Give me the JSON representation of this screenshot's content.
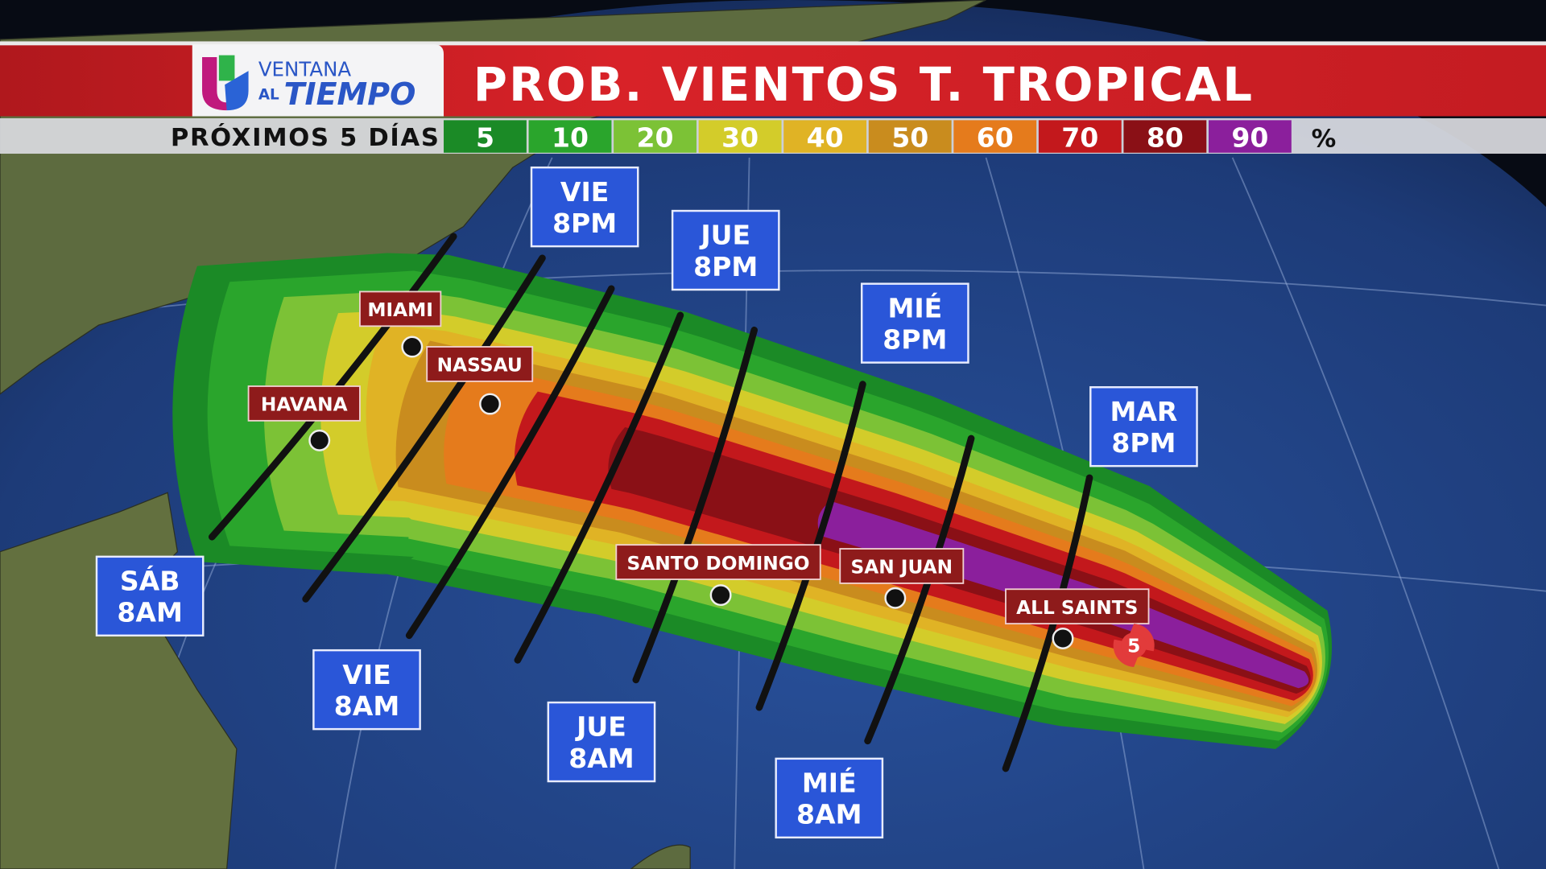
{
  "header": {
    "logo": {
      "line1": "VENTANA",
      "line2_small": "AL",
      "line2": "TIEMPO"
    },
    "title": "PROB. VIENTOS T. TROPICAL",
    "subtitle": "PRÓXIMOS 5 DÍAS",
    "legend_unit": "%",
    "legend": [
      {
        "value": "5",
        "color": "#1b8a26"
      },
      {
        "value": "10",
        "color": "#2aa52c"
      },
      {
        "value": "20",
        "color": "#7cc236"
      },
      {
        "value": "30",
        "color": "#d3cc2a"
      },
      {
        "value": "40",
        "color": "#e0b325"
      },
      {
        "value": "50",
        "color": "#c98c1e"
      },
      {
        "value": "60",
        "color": "#e57b1c"
      },
      {
        "value": "70",
        "color": "#c3181c"
      },
      {
        "value": "80",
        "color": "#8a1016"
      },
      {
        "value": "90",
        "color": "#8b1f9c"
      }
    ]
  },
  "time_labels": [
    {
      "day": "VIE",
      "time": "8PM"
    },
    {
      "day": "JUE",
      "time": "8PM"
    },
    {
      "day": "MIÉ",
      "time": "8PM"
    },
    {
      "day": "MAR",
      "time": "8PM"
    },
    {
      "day": "SÁB",
      "time": "8AM"
    },
    {
      "day": "VIE",
      "time": "8AM"
    },
    {
      "day": "JUE",
      "time": "8AM"
    },
    {
      "day": "MIÉ",
      "time": "8AM"
    }
  ],
  "cities": [
    "MIAMI",
    "NASSAU",
    "HAVANA",
    "SANTO DOMINGO",
    "SAN JUAN",
    "ALL SAINTS"
  ],
  "storm": {
    "icon": "hurricane-icon",
    "category": "5"
  },
  "colors": {
    "header_red": "#d42027",
    "time_box": "#2a56d8",
    "city_box": "#8e1b1b",
    "ocean": "#1f3d7a"
  }
}
